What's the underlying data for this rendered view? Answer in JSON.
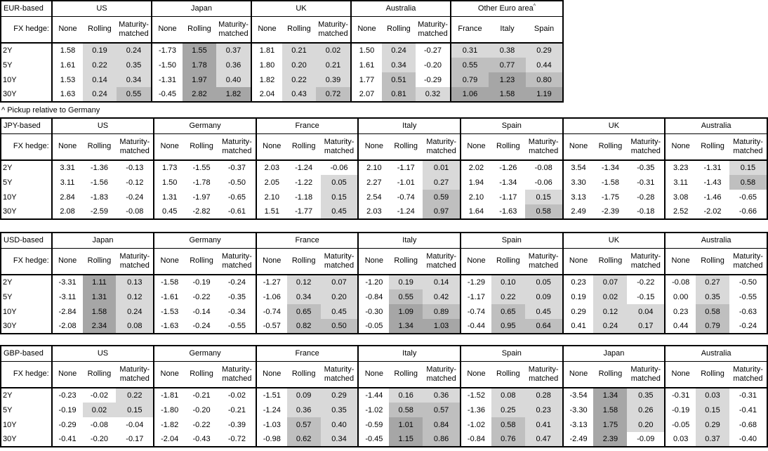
{
  "footnote": "^ Pickup relative to Germany",
  "fx_hedge_label": "FX hedge:",
  "hedge_cols": [
    "None",
    "Rolling",
    "Maturity-matched"
  ],
  "tenors": [
    "2Y",
    "5Y",
    "10Y",
    "30Y"
  ],
  "shading": {
    "unshaded": "#ffffff",
    "low": "#d9d9d9",
    "mid": "#bfbfbf",
    "high": "#a6a6a6",
    "thresholds": [
      0,
      0.5,
      1.0
    ],
    "rule": "Rolling and Maturity-matched columns (and all Other Euro area columns) shaded by value: 0-0.5 low, 0.5-1.0 mid, >=1.0 high; negatives unshaded"
  },
  "tables": [
    {
      "base": "EUR-based",
      "groups": [
        {
          "name": "US",
          "rows": [
            [
              1.58,
              0.19,
              0.24
            ],
            [
              1.61,
              0.22,
              0.35
            ],
            [
              1.53,
              0.14,
              0.34
            ],
            [
              1.63,
              0.24,
              0.55
            ]
          ]
        },
        {
          "name": "Japan",
          "rows": [
            [
              -1.73,
              1.55,
              0.37
            ],
            [
              -1.5,
              1.78,
              0.36
            ],
            [
              -1.31,
              1.97,
              0.4
            ],
            [
              -0.45,
              2.82,
              1.82
            ]
          ]
        },
        {
          "name": "UK",
          "rows": [
            [
              1.81,
              0.21,
              0.02
            ],
            [
              1.8,
              0.2,
              0.21
            ],
            [
              1.82,
              0.22,
              0.39
            ],
            [
              2.04,
              0.43,
              0.72
            ]
          ]
        },
        {
          "name": "Australia",
          "rows": [
            [
              1.5,
              0.24,
              -0.27
            ],
            [
              1.61,
              0.34,
              -0.2
            ],
            [
              1.77,
              0.51,
              -0.29
            ],
            [
              2.07,
              0.81,
              0.32
            ]
          ]
        },
        {
          "name": "Other Euro area",
          "sup": "^",
          "cols": [
            "France",
            "Italy",
            "Spain"
          ],
          "shade_all": true,
          "rows": [
            [
              0.31,
              0.38,
              0.29
            ],
            [
              0.55,
              0.77,
              0.44
            ],
            [
              0.79,
              1.23,
              0.8
            ],
            [
              1.06,
              1.58,
              1.19
            ]
          ]
        }
      ]
    },
    {
      "base": "JPY-based",
      "groups": [
        {
          "name": "US",
          "rows": [
            [
              3.31,
              -1.36,
              -0.13
            ],
            [
              3.11,
              -1.56,
              -0.12
            ],
            [
              2.84,
              -1.83,
              -0.24
            ],
            [
              2.08,
              -2.59,
              -0.08
            ]
          ]
        },
        {
          "name": "Germany",
          "rows": [
            [
              1.73,
              -1.55,
              -0.37
            ],
            [
              1.5,
              -1.78,
              -0.5
            ],
            [
              1.31,
              -1.97,
              -0.65
            ],
            [
              0.45,
              -2.82,
              -0.61
            ]
          ]
        },
        {
          "name": "France",
          "rows": [
            [
              2.03,
              -1.24,
              -0.06
            ],
            [
              2.05,
              -1.22,
              0.05
            ],
            [
              2.1,
              -1.18,
              0.15
            ],
            [
              1.51,
              -1.77,
              0.45
            ]
          ]
        },
        {
          "name": "Italy",
          "rows": [
            [
              2.1,
              -1.17,
              0.01
            ],
            [
              2.27,
              -1.01,
              0.27
            ],
            [
              2.54,
              -0.74,
              0.59
            ],
            [
              2.03,
              -1.24,
              0.97
            ]
          ]
        },
        {
          "name": "Spain",
          "rows": [
            [
              2.02,
              -1.26,
              -0.08
            ],
            [
              1.94,
              -1.34,
              -0.06
            ],
            [
              2.1,
              -1.17,
              0.15
            ],
            [
              1.64,
              -1.63,
              0.58
            ]
          ]
        },
        {
          "name": "UK",
          "rows": [
            [
              3.54,
              -1.34,
              -0.35
            ],
            [
              3.3,
              -1.58,
              -0.31
            ],
            [
              3.13,
              -1.75,
              -0.28
            ],
            [
              2.49,
              -2.39,
              -0.18
            ]
          ]
        },
        {
          "name": "Australia",
          "rows": [
            [
              3.23,
              -1.31,
              0.15
            ],
            [
              3.11,
              -1.43,
              0.58
            ],
            [
              3.08,
              -1.46,
              -0.65
            ],
            [
              2.52,
              -2.02,
              -0.66
            ]
          ]
        }
      ]
    },
    {
      "base": "USD-based",
      "groups": [
        {
          "name": "Japan",
          "rows": [
            [
              -3.31,
              1.11,
              0.13
            ],
            [
              -3.11,
              1.31,
              0.12
            ],
            [
              -2.84,
              1.58,
              0.24
            ],
            [
              -2.08,
              2.34,
              0.08
            ]
          ]
        },
        {
          "name": "Germany",
          "rows": [
            [
              -1.58,
              -0.19,
              -0.24
            ],
            [
              -1.61,
              -0.22,
              -0.35
            ],
            [
              -1.53,
              -0.14,
              -0.34
            ],
            [
              -1.63,
              -0.24,
              -0.55
            ]
          ]
        },
        {
          "name": "France",
          "rows": [
            [
              -1.27,
              0.12,
              0.07
            ],
            [
              -1.06,
              0.34,
              0.2
            ],
            [
              -0.74,
              0.65,
              0.45
            ],
            [
              -0.57,
              0.82,
              0.5
            ]
          ]
        },
        {
          "name": "Italy",
          "rows": [
            [
              -1.2,
              0.19,
              0.14
            ],
            [
              -0.84,
              0.55,
              0.42
            ],
            [
              -0.3,
              1.09,
              0.89
            ],
            [
              -0.05,
              1.34,
              1.03
            ]
          ]
        },
        {
          "name": "Spain",
          "rows": [
            [
              -1.29,
              0.1,
              0.05
            ],
            [
              -1.17,
              0.22,
              0.09
            ],
            [
              -0.74,
              0.65,
              0.45
            ],
            [
              -0.44,
              0.95,
              0.64
            ]
          ]
        },
        {
          "name": "UK",
          "rows": [
            [
              0.23,
              0.07,
              -0.22
            ],
            [
              0.19,
              0.02,
              -0.15
            ],
            [
              0.29,
              0.12,
              0.04
            ],
            [
              0.41,
              0.24,
              0.17
            ]
          ]
        },
        {
          "name": "Australia",
          "rows": [
            [
              -0.08,
              0.27,
              -0.5
            ],
            [
              0.0,
              0.35,
              -0.55
            ],
            [
              0.23,
              0.58,
              -0.63
            ],
            [
              0.44,
              0.79,
              -0.24
            ]
          ]
        }
      ]
    },
    {
      "base": "GBP-based",
      "groups": [
        {
          "name": "US",
          "rows": [
            [
              -0.23,
              -0.02,
              0.22
            ],
            [
              -0.19,
              0.02,
              0.15
            ],
            [
              -0.29,
              -0.08,
              -0.04
            ],
            [
              -0.41,
              -0.2,
              -0.17
            ]
          ]
        },
        {
          "name": "Germany",
          "rows": [
            [
              -1.81,
              -0.21,
              -0.02
            ],
            [
              -1.8,
              -0.2,
              -0.21
            ],
            [
              -1.82,
              -0.22,
              -0.39
            ],
            [
              -2.04,
              -0.43,
              -0.72
            ]
          ]
        },
        {
          "name": "France",
          "rows": [
            [
              -1.51,
              0.09,
              0.29
            ],
            [
              -1.24,
              0.36,
              0.35
            ],
            [
              -1.03,
              0.57,
              0.4
            ],
            [
              -0.98,
              0.62,
              0.34
            ]
          ]
        },
        {
          "name": "Italy",
          "rows": [
            [
              -1.44,
              0.16,
              0.36
            ],
            [
              -1.02,
              0.58,
              0.57
            ],
            [
              -0.59,
              1.01,
              0.84
            ],
            [
              -0.45,
              1.15,
              0.86
            ]
          ]
        },
        {
          "name": "Spain",
          "rows": [
            [
              -1.52,
              0.08,
              0.28
            ],
            [
              -1.36,
              0.25,
              0.23
            ],
            [
              -1.02,
              0.58,
              0.41
            ],
            [
              -0.84,
              0.76,
              0.47
            ]
          ]
        },
        {
          "name": "Japan",
          "rows": [
            [
              -3.54,
              1.34,
              0.35
            ],
            [
              -3.3,
              1.58,
              0.26
            ],
            [
              -3.13,
              1.75,
              0.2
            ],
            [
              -2.49,
              2.39,
              -0.09
            ]
          ]
        },
        {
          "name": "Australia",
          "rows": [
            [
              -0.31,
              0.03,
              -0.31
            ],
            [
              -0.19,
              0.15,
              -0.41
            ],
            [
              -0.05,
              0.29,
              -0.68
            ],
            [
              0.03,
              0.37,
              -0.4
            ]
          ]
        }
      ]
    }
  ]
}
